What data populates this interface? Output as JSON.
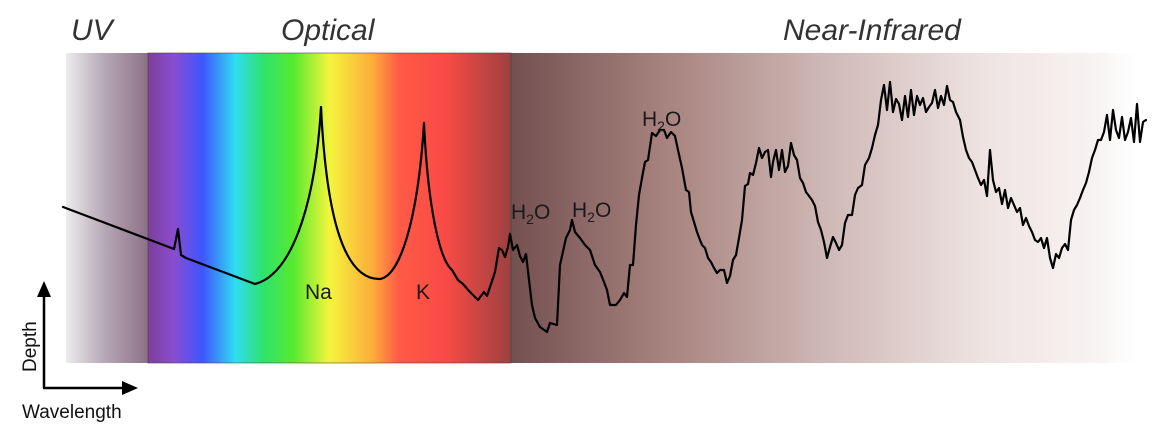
{
  "regions": {
    "uv": "UV",
    "optical": "Optical",
    "near_infrared": "Near-Infrared"
  },
  "features": {
    "na": "Na",
    "k": "K",
    "water_base": "H",
    "water_sub": "2",
    "water_tail": "O"
  },
  "axes": {
    "y": "Depth",
    "x": "Wavelength"
  },
  "colors": {
    "uv_band": "#8a6f86",
    "optical_violet": "#7a3fb5",
    "optical_blue": "#3d5cff",
    "optical_cyan": "#2fdcf2",
    "optical_green": "#33e63a",
    "optical_yellow": "#f2f23a",
    "optical_red": "#ff4a4a",
    "nir_brown": "#7a5552",
    "spectrum_line": "#000000"
  }
}
